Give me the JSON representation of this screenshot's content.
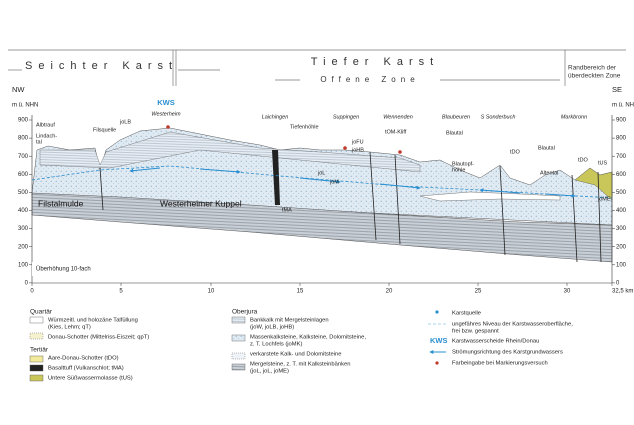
{
  "header": {
    "seichter": "Seichter Karst",
    "tiefer": "Tiefer Karst",
    "offene": "Offene Zone",
    "randbereich": [
      "Randbereich der",
      "überdeckten Zone"
    ]
  },
  "section": {
    "left_dir": "NW",
    "right_dir": "SE",
    "y_unit": "m ü. NHN",
    "y_ticks": [
      900,
      800,
      700,
      600,
      500,
      400,
      300,
      200,
      100,
      0
    ],
    "x_ticks": [
      0,
      5,
      10,
      15,
      20,
      25,
      30,
      "32,5 km"
    ],
    "exaggeration": "Überhöhung 10-fach",
    "structures": [
      "Filstalmulde",
      "Westerheimer Kuppel"
    ],
    "places": [
      {
        "label": [
          "Albtrauf"
        ]
      },
      {
        "label": [
          "Lindach-",
          "tal"
        ]
      },
      {
        "label": [
          "Filsquelle"
        ]
      },
      {
        "label": [
          "joLB"
        ]
      },
      {
        "label": [
          "KWS"
        ]
      },
      {
        "label": [
          "Westerheim"
        ]
      },
      {
        "label": [
          "Laichingen"
        ]
      },
      {
        "label": [
          "Tiefenhöhle"
        ]
      },
      {
        "label": [
          "Suppingen"
        ]
      },
      {
        "label": [
          "joFU"
        ]
      },
      {
        "label": [
          "joHB"
        ]
      },
      {
        "label": [
          "Wennenden"
        ]
      },
      {
        "label": [
          "tOM-Kliff"
        ]
      },
      {
        "label": [
          "Blaubeuren"
        ]
      },
      {
        "label": [
          "S Sonderbuch"
        ]
      },
      {
        "label": [
          "Blautal"
        ]
      },
      {
        "label": [
          "Blautopf-",
          "höhle"
        ]
      },
      {
        "label": [
          "tDO"
        ]
      },
      {
        "label": [
          "Blautal"
        ]
      },
      {
        "label": [
          "Altental"
        ]
      },
      {
        "label": [
          "Markbronn"
        ]
      },
      {
        "label": [
          "tDO"
        ]
      },
      {
        "label": [
          "tUS"
        ]
      },
      {
        "label": [
          "tMA"
        ]
      },
      {
        "label": [
          "joL"
        ]
      },
      {
        "label": [
          "joM"
        ]
      },
      {
        "label": [
          "joME"
        ]
      }
    ]
  },
  "legend": {
    "quartaer": {
      "title": "Quartär",
      "items": [
        [
          "Würmzeitl. und holozäne Talfüllung",
          "(Kies, Lehm; qT)"
        ],
        [
          "Donau-Schotter (Mittelriss-Eiszeit; qpT)"
        ]
      ]
    },
    "tertiaer": {
      "title": "Tertiär",
      "items": [
        [
          "Aare-Donau-Schotter (tDO)"
        ],
        [
          "Basalttuff (Vulkanschlot; tMA)"
        ],
        [
          "Untere Süßwassermolasse (tUS)"
        ]
      ]
    },
    "oberjura": {
      "title": "Oberjura",
      "items": [
        [
          "Bankkalk mit Mergelsteinlagen",
          "(joW, joLB, joHB)"
        ],
        [
          "Massenkalksteine, Kalksteine, Dolomitsteine,",
          "z. T. Lochfels (joMK)"
        ],
        [
          "verkarstete Kalk- und Dolomitsteine"
        ],
        [
          "Mergelsteine, z. T. mit Kalksteinbänken",
          "(joL, joL, joME)"
        ]
      ]
    },
    "symbols": [
      [
        "Karstquelle"
      ],
      [
        "ungefähres Niveau der Karstwasseroberfläche,",
        "frei bzw. gespannt"
      ],
      [
        "KWS",
        "Karstwasserscheide Rhein/Donau"
      ],
      [
        "Strömungsrichtung des Karstgrundwassers"
      ],
      [
        "Farbeingabe bei Markierungsversuch"
      ]
    ]
  }
}
